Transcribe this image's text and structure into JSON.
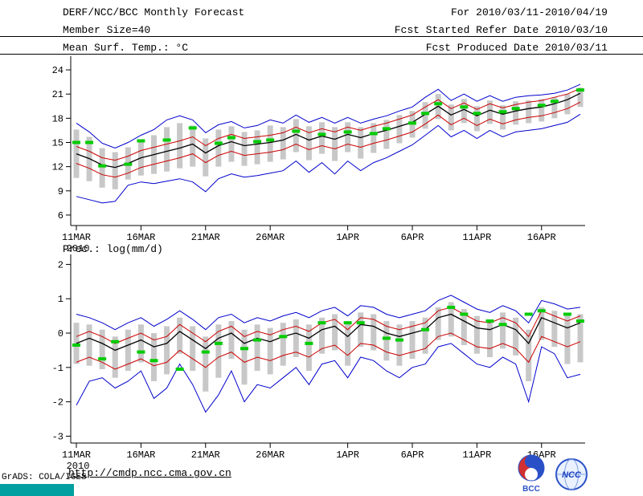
{
  "header": {
    "title": "DERF/NCC/BCC Monthly Forecast",
    "for_range": "For 2010/03/11-2010/04/19",
    "member_size": "Member Size=40",
    "fcst_started": "Fcst Started Refer Date 2010/03/10",
    "temp_label": "Mean Surf. Temp.: °C",
    "fcst_produced": "Fcst Produced Date 2010/03/11"
  },
  "footer": {
    "url": "http://cmdp.ncc.cma.gov.cn",
    "grads_credit": "GrADS: COLA/IGES",
    "bcc_logo_text": "BCC",
    "ncc_logo_text": "NCC"
  },
  "colors": {
    "envelope_blue": "#0000cc",
    "quartile_red": "#cc0000",
    "mean_black": "#000000",
    "obs_green": "#00cc00",
    "spread_gray": "#c8c8c8",
    "grads_teal": "#00a0a0"
  },
  "chart_data": [
    {
      "id": "surface-temp",
      "type": "line",
      "title": "Mean Surf. Temp.: °C",
      "ylim": [
        4.7,
        25.1
      ],
      "yticks": [
        6,
        9,
        12,
        15,
        18,
        21,
        24
      ],
      "x_days": 40,
      "x_tick_positions": [
        0,
        5,
        10,
        15,
        21,
        26,
        31,
        36
      ],
      "x_tick_labels": [
        "11MAR",
        "16MAR",
        "21MAR",
        "26MAR",
        "1APR",
        "6APR",
        "11APR",
        "16APR"
      ],
      "x_start_year": "2010",
      "grid": false,
      "legend": "none",
      "spread_bars": {
        "color": "#c8c8c8",
        "low": [
          10.6,
          10.2,
          9.4,
          9.2,
          10.4,
          10.9,
          11.1,
          11.4,
          11.8,
          12.0,
          10.8,
          12.0,
          12.6,
          12.1,
          12.3,
          12.6,
          12.9,
          13.8,
          12.8,
          13.6,
          12.7,
          13.8,
          13.0,
          13.7,
          14.2,
          14.9,
          15.6,
          16.7,
          17.9,
          16.5,
          17.4,
          16.4,
          17.3,
          16.6,
          17.2,
          17.4,
          17.6,
          18.0,
          18.5,
          19.4
        ],
        "high": [
          16.6,
          15.7,
          14.3,
          13.8,
          14.4,
          15.3,
          15.9,
          16.9,
          17.4,
          17.1,
          15.5,
          16.6,
          17.0,
          16.3,
          16.5,
          17.1,
          16.9,
          17.9,
          17.0,
          17.5,
          16.9,
          17.5,
          16.9,
          17.4,
          17.8,
          18.4,
          18.9,
          20.0,
          21.0,
          19.7,
          20.4,
          19.5,
          20.2,
          19.6,
          20.1,
          20.2,
          20.4,
          20.6,
          21.0,
          21.8
        ]
      },
      "series": [
        {
          "name": "ensemble-max",
          "color": "#0000cc",
          "width": 1,
          "values": [
            17.4,
            16.3,
            14.9,
            14.3,
            15.0,
            15.9,
            16.6,
            17.8,
            18.3,
            17.8,
            16.2,
            17.2,
            17.6,
            16.8,
            17.1,
            17.8,
            17.4,
            18.4,
            17.5,
            18.1,
            17.4,
            18.1,
            17.4,
            17.9,
            18.3,
            18.9,
            19.4,
            20.6,
            21.6,
            20.2,
            21.0,
            20.1,
            20.8,
            20.1,
            20.6,
            20.8,
            20.9,
            21.1,
            21.5,
            22.2
          ]
        },
        {
          "name": "ensemble-min",
          "color": "#0000cc",
          "width": 1,
          "values": [
            8.3,
            7.9,
            7.5,
            7.7,
            9.7,
            10.1,
            9.9,
            10.2,
            10.5,
            10.1,
            8.9,
            10.5,
            11.1,
            10.7,
            10.9,
            11.2,
            11.5,
            12.7,
            11.3,
            12.5,
            11.1,
            12.7,
            11.5,
            12.5,
            13.1,
            13.9,
            14.7,
            15.9,
            17.1,
            15.7,
            16.5,
            15.5,
            16.5,
            15.7,
            16.3,
            16.5,
            16.7,
            17.1,
            17.5,
            18.5
          ]
        },
        {
          "name": "upper-quartile",
          "color": "#cc0000",
          "width": 1,
          "values": [
            14.5,
            13.9,
            13.1,
            12.8,
            13.3,
            14.0,
            14.4,
            14.8,
            15.2,
            15.7,
            14.6,
            15.5,
            16.0,
            15.5,
            15.7,
            15.9,
            16.2,
            16.9,
            16.2,
            16.7,
            16.3,
            16.9,
            16.5,
            17.0,
            17.4,
            17.9,
            18.4,
            19.4,
            20.3,
            19.2,
            19.9,
            19.1,
            19.8,
            19.3,
            19.7,
            20.0,
            20.2,
            20.6,
            21.0,
            21.7
          ]
        },
        {
          "name": "lower-quartile",
          "color": "#cc0000",
          "width": 1,
          "values": [
            12.4,
            11.8,
            11.0,
            10.7,
            11.2,
            11.9,
            12.3,
            12.7,
            13.1,
            13.6,
            12.5,
            13.4,
            13.9,
            13.4,
            13.6,
            13.8,
            14.1,
            14.8,
            14.1,
            14.6,
            14.2,
            14.8,
            14.4,
            14.9,
            15.3,
            15.8,
            16.3,
            17.3,
            18.4,
            17.2,
            18.0,
            17.1,
            17.9,
            17.3,
            17.8,
            18.1,
            18.3,
            18.7,
            19.2,
            20.0
          ]
        },
        {
          "name": "ensemble-mean",
          "color": "#000000",
          "width": 1.3,
          "values": [
            13.6,
            13.0,
            12.2,
            11.9,
            12.4,
            13.1,
            13.5,
            13.9,
            14.3,
            14.8,
            13.7,
            14.6,
            15.1,
            14.6,
            14.8,
            15.0,
            15.3,
            16.0,
            15.3,
            15.8,
            15.4,
            16.0,
            15.6,
            16.1,
            16.5,
            17.0,
            17.5,
            18.5,
            19.5,
            18.4,
            19.1,
            18.3,
            19.0,
            18.5,
            18.9,
            19.2,
            19.4,
            19.8,
            20.3,
            21.1
          ]
        },
        {
          "name": "observation",
          "color": "#00cc00",
          "width": 4,
          "style": "dash-marks",
          "values": [
            15.0,
            15.0,
            12.1,
            null,
            12.3,
            15.2,
            null,
            15.3,
            null,
            16.8,
            null,
            14.9,
            15.6,
            null,
            15.1,
            15.3,
            null,
            16.4,
            null,
            16.0,
            null,
            16.3,
            null,
            16.1,
            16.7,
            null,
            17.4,
            18.6,
            19.8,
            null,
            19.4,
            18.6,
            null,
            18.8,
            19.2,
            null,
            19.6,
            20.1,
            null,
            21.5
          ]
        }
      ]
    },
    {
      "id": "precipitation",
      "type": "line",
      "title": "Prec.: log(mm/d)",
      "ylim": [
        -3.2,
        2.15
      ],
      "yticks": [
        -3,
        -2,
        -1,
        0,
        1,
        2
      ],
      "x_days": 40,
      "x_tick_positions": [
        0,
        5,
        10,
        15,
        21,
        26,
        31,
        36
      ],
      "x_tick_labels": [
        "11MAR",
        "16MAR",
        "21MAR",
        "26MAR",
        "1APR",
        "6APR",
        "11APR",
        "16APR"
      ],
      "x_start_year": "2010",
      "grid": false,
      "legend": "none",
      "spread_bars": {
        "color": "#c8c8c8",
        "low": [
          -0.9,
          -0.95,
          -1.05,
          -1.3,
          -1.1,
          -0.85,
          -1.4,
          -1.2,
          -0.6,
          -1.1,
          -1.7,
          -1.3,
          -0.75,
          -1.5,
          -1.1,
          -1.2,
          -0.95,
          -0.7,
          -1.1,
          -0.6,
          -0.5,
          -0.95,
          -0.4,
          -0.5,
          -0.8,
          -0.95,
          -0.75,
          -0.6,
          -0.2,
          -0.1,
          -0.35,
          -0.6,
          -0.7,
          -0.45,
          -0.65,
          -1.4,
          -0.2,
          -0.4,
          -0.9,
          -0.85
        ],
        "high": [
          0.3,
          0.25,
          0.1,
          -0.1,
          0.1,
          0.25,
          0.0,
          0.2,
          0.45,
          0.2,
          -0.1,
          0.25,
          0.35,
          0.1,
          0.25,
          0.15,
          0.3,
          0.4,
          0.25,
          0.45,
          0.55,
          0.3,
          0.6,
          0.55,
          0.35,
          0.25,
          0.35,
          0.45,
          0.75,
          0.9,
          0.7,
          0.5,
          0.4,
          0.6,
          0.45,
          0.1,
          0.75,
          0.65,
          0.5,
          0.55
        ]
      },
      "series": [
        {
          "name": "ensemble-max",
          "color": "#0000cc",
          "width": 1,
          "values": [
            0.55,
            0.45,
            0.3,
            0.1,
            0.3,
            0.45,
            0.2,
            0.4,
            0.65,
            0.4,
            0.1,
            0.45,
            0.55,
            0.3,
            0.45,
            0.35,
            0.5,
            0.6,
            0.45,
            0.65,
            0.75,
            0.5,
            0.8,
            0.75,
            0.55,
            0.45,
            0.55,
            0.65,
            0.95,
            1.1,
            0.9,
            0.7,
            0.6,
            0.8,
            0.65,
            0.3,
            0.95,
            0.85,
            0.7,
            0.75
          ]
        },
        {
          "name": "ensemble-min",
          "color": "#0000cc",
          "width": 1,
          "values": [
            -2.1,
            -1.4,
            -1.3,
            -1.6,
            -1.4,
            -1.1,
            -1.9,
            -1.6,
            -0.9,
            -1.5,
            -2.3,
            -1.8,
            -1.1,
            -2.0,
            -1.5,
            -1.6,
            -1.3,
            -1.0,
            -1.5,
            -0.9,
            -0.8,
            -1.3,
            -0.7,
            -0.8,
            -1.1,
            -1.3,
            -1.0,
            -0.9,
            -0.4,
            -0.3,
            -0.6,
            -0.9,
            -1.0,
            -0.7,
            -0.9,
            -2.0,
            -0.4,
            -0.6,
            -1.3,
            -1.2
          ]
        },
        {
          "name": "upper-quartile",
          "color": "#cc0000",
          "width": 1,
          "values": [
            -0.1,
            0.05,
            -0.1,
            -0.3,
            -0.15,
            0.0,
            -0.2,
            -0.1,
            0.25,
            0.0,
            -0.25,
            0.05,
            0.2,
            -0.1,
            0.05,
            -0.05,
            0.1,
            0.2,
            0.05,
            0.3,
            0.4,
            0.1,
            0.45,
            0.4,
            0.2,
            0.1,
            0.2,
            0.3,
            0.65,
            0.75,
            0.55,
            0.35,
            0.3,
            0.45,
            0.3,
            -0.1,
            0.65,
            0.5,
            0.35,
            0.5
          ]
        },
        {
          "name": "lower-quartile",
          "color": "#cc0000",
          "width": 1,
          "values": [
            -0.85,
            -0.7,
            -0.85,
            -1.05,
            -0.9,
            -0.75,
            -0.95,
            -0.85,
            -0.5,
            -0.75,
            -1.0,
            -0.7,
            -0.55,
            -0.85,
            -0.7,
            -0.8,
            -0.65,
            -0.55,
            -0.7,
            -0.45,
            -0.35,
            -0.65,
            -0.3,
            -0.35,
            -0.55,
            -0.65,
            -0.55,
            -0.45,
            -0.1,
            0.0,
            -0.2,
            -0.4,
            -0.45,
            -0.3,
            -0.45,
            -0.85,
            -0.1,
            -0.25,
            -0.4,
            -0.25
          ]
        },
        {
          "name": "ensemble-mean",
          "color": "#000000",
          "width": 1.3,
          "values": [
            -0.3,
            -0.15,
            -0.3,
            -0.5,
            -0.35,
            -0.2,
            -0.4,
            -0.3,
            0.05,
            -0.2,
            -0.45,
            -0.15,
            0.0,
            -0.3,
            -0.15,
            -0.25,
            -0.1,
            0.0,
            -0.15,
            0.1,
            0.2,
            -0.1,
            0.25,
            0.2,
            0.0,
            -0.1,
            0.0,
            0.1,
            0.45,
            0.55,
            0.35,
            0.15,
            0.1,
            0.25,
            0.1,
            -0.3,
            0.45,
            0.3,
            0.15,
            0.3
          ]
        },
        {
          "name": "observation",
          "color": "#00cc00",
          "width": 4,
          "style": "dash-marks",
          "values": [
            -0.35,
            null,
            -0.75,
            -0.25,
            null,
            -0.55,
            -0.8,
            null,
            -1.05,
            null,
            -0.55,
            -0.3,
            null,
            -0.45,
            -0.2,
            null,
            -0.1,
            null,
            -0.3,
            0.3,
            null,
            0.3,
            0.3,
            null,
            -0.15,
            -0.2,
            null,
            0.1,
            null,
            0.75,
            0.55,
            null,
            0.35,
            0.25,
            null,
            0.55,
            0.65,
            null,
            0.55,
            0.35
          ]
        }
      ]
    }
  ]
}
